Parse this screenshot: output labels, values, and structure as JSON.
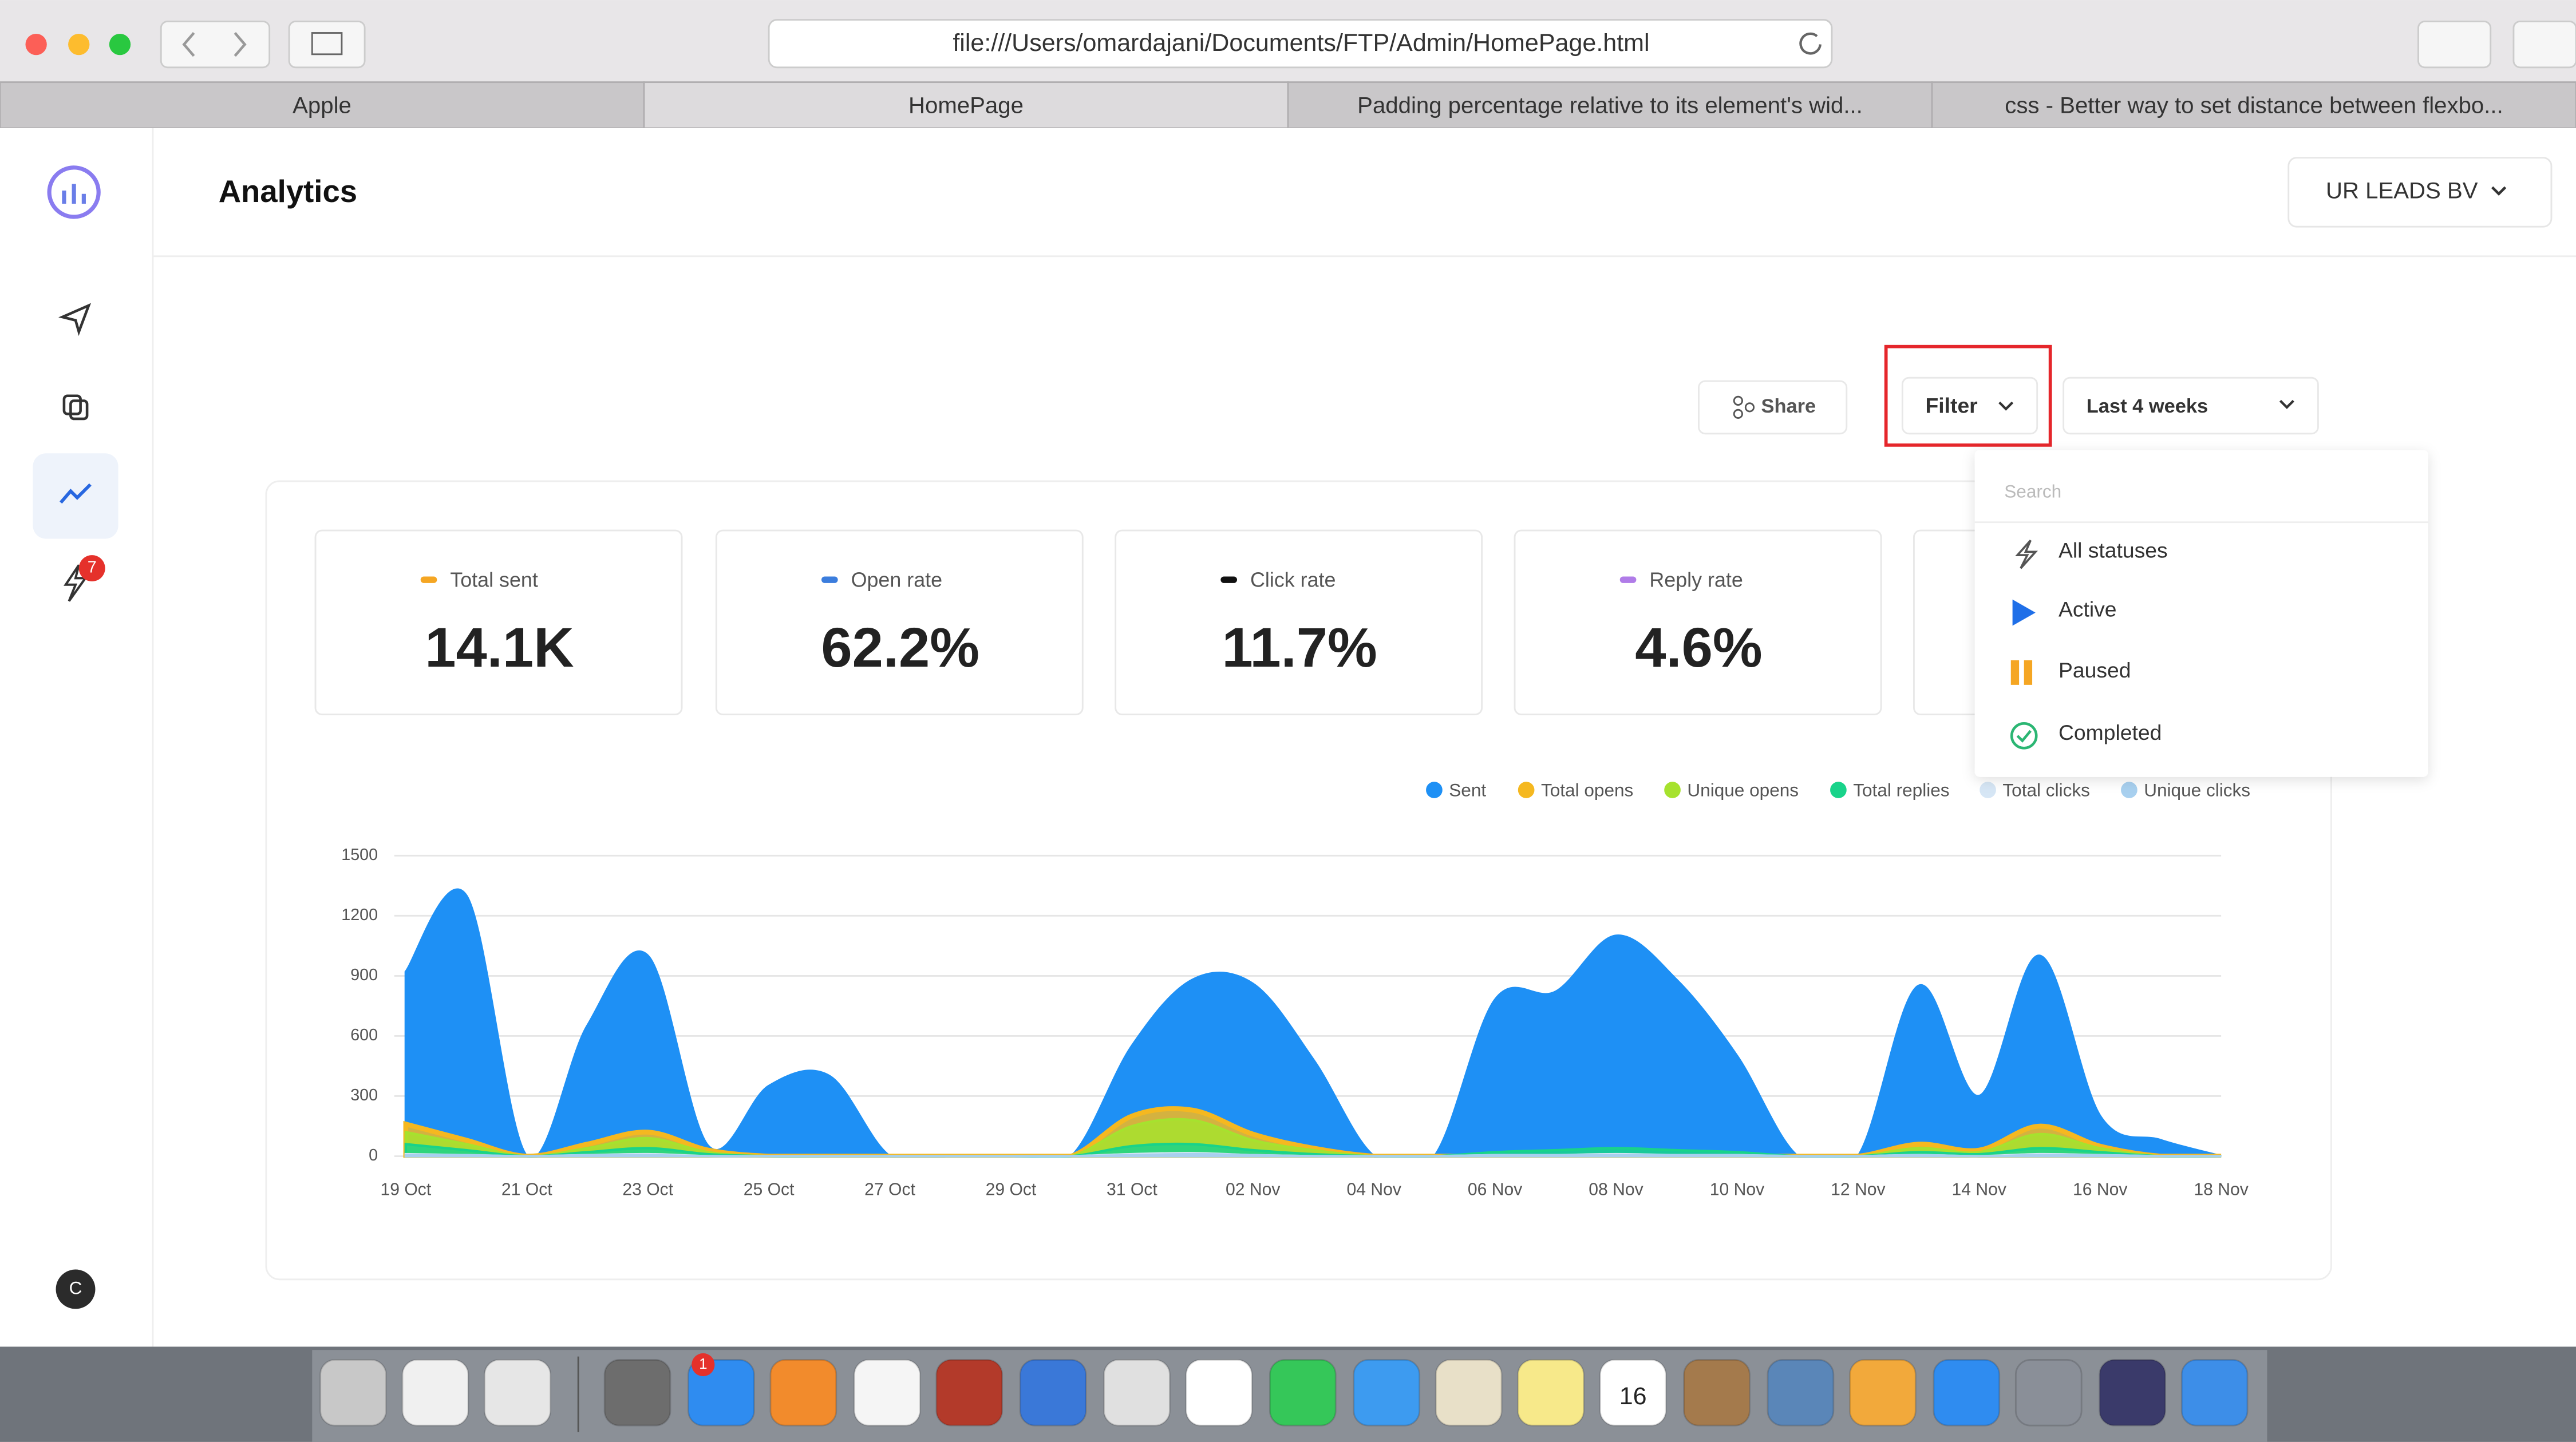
{
  "browser": {
    "url": "file:///Users/omardajani/Documents/FTP/Admin/HomePage.html",
    "tabs": [
      "Apple",
      "HomePage",
      "Padding percentage relative to its element's wid...",
      "css - Better way to set distance between flexbo..."
    ]
  },
  "app": {
    "title": "Analytics",
    "account": "UR LEADS BV",
    "notification_badge": "7",
    "avatar": "C"
  },
  "toolbar": {
    "share": "Share",
    "filter": "Filter",
    "range": "Last 4 weeks"
  },
  "stats": [
    {
      "label": "Total sent",
      "value": "14.1K",
      "color": "#f5a623"
    },
    {
      "label": "Open rate",
      "value": "62.2%",
      "color": "#3b7ddd"
    },
    {
      "label": "Click rate",
      "value": "11.7%",
      "color": "#111111"
    },
    {
      "label": "Reply rate",
      "value": "4.6%",
      "color": "#b07ce8"
    }
  ],
  "dropdown": {
    "search": "Search",
    "items": [
      "All statuses",
      "Active",
      "Paused",
      "Completed"
    ]
  },
  "dock": {
    "badge": "1",
    "calendar_day": "16"
  },
  "chart_data": {
    "type": "area",
    "categories": [
      "19 Oct",
      null,
      "21 Oct",
      null,
      "23 Oct",
      null,
      "25 Oct",
      null,
      "27 Oct",
      null,
      "29 Oct",
      null,
      "31 Oct",
      null,
      "02 Nov",
      null,
      "04 Nov",
      null,
      "06 Nov",
      null,
      "08 Nov",
      null,
      "10 Nov",
      null,
      "12 Nov",
      null,
      "14 Nov",
      null,
      "16 Nov",
      null,
      "18 Nov"
    ],
    "series": [
      {
        "name": "Sent",
        "color": "#1e90f5",
        "values": [
          920,
          1300,
          0,
          650,
          1000,
          50,
          350,
          400,
          0,
          0,
          0,
          0,
          550,
          880,
          860,
          480,
          0,
          0,
          780,
          820,
          1100,
          880,
          500,
          0,
          0,
          850,
          300,
          1000,
          200,
          80,
          0
        ]
      },
      {
        "name": "Total opens",
        "color": "#f5b820",
        "values": [
          160,
          80,
          0,
          60,
          120,
          30,
          0,
          0,
          0,
          0,
          0,
          0,
          200,
          230,
          110,
          40,
          0,
          0,
          0,
          0,
          0,
          0,
          0,
          0,
          0,
          60,
          30,
          150,
          50,
          0,
          0
        ]
      },
      {
        "name": "Unique opens",
        "color": "#a6e22e",
        "values": [
          120,
          60,
          0,
          40,
          90,
          20,
          0,
          0,
          0,
          0,
          0,
          0,
          150,
          180,
          80,
          30,
          0,
          0,
          0,
          0,
          0,
          0,
          0,
          0,
          0,
          40,
          20,
          110,
          40,
          0,
          0
        ]
      },
      {
        "name": "Total replies",
        "color": "#19d38a",
        "values": [
          60,
          30,
          0,
          20,
          40,
          10,
          0,
          0,
          0,
          0,
          0,
          0,
          50,
          60,
          30,
          10,
          0,
          0,
          20,
          30,
          40,
          30,
          20,
          0,
          0,
          20,
          10,
          40,
          20,
          0,
          0
        ]
      },
      {
        "name": "Total clicks",
        "color": "#d6e6f5",
        "values": [
          10,
          5,
          0,
          5,
          10,
          0,
          0,
          0,
          0,
          0,
          0,
          0,
          10,
          15,
          5,
          0,
          0,
          0,
          5,
          5,
          10,
          5,
          5,
          0,
          0,
          5,
          0,
          10,
          5,
          0,
          0
        ]
      },
      {
        "name": "Unique clicks",
        "color": "#a8d0ef",
        "values": [
          5,
          5,
          0,
          5,
          5,
          0,
          0,
          0,
          0,
          0,
          0,
          0,
          5,
          10,
          5,
          0,
          0,
          0,
          5,
          5,
          5,
          5,
          5,
          0,
          0,
          5,
          0,
          5,
          5,
          0,
          0
        ]
      }
    ],
    "ylim": [
      0,
      1500
    ],
    "yticks": [
      0,
      300,
      600,
      900,
      1200,
      1500
    ],
    "grid": true
  }
}
